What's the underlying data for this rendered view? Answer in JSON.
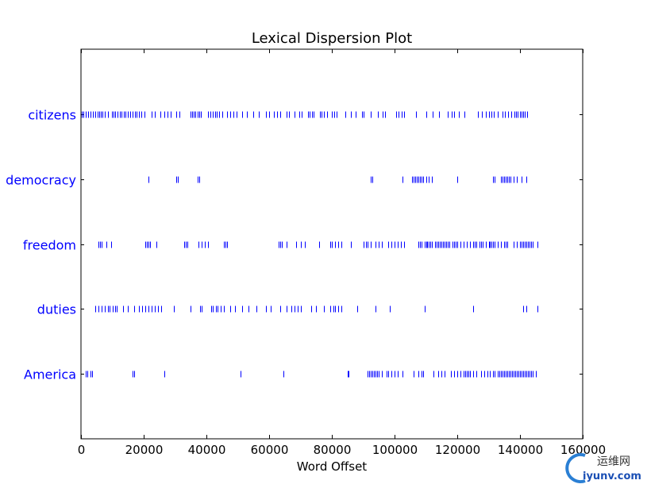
{
  "chart_data": {
    "type": "scatter",
    "title": "Lexical Dispersion Plot",
    "xlabel": "Word Offset",
    "ylabel": "",
    "xlim": [
      0,
      160000
    ],
    "x_ticks": [
      "0",
      "20000",
      "40000",
      "60000",
      "80000",
      "100000",
      "120000",
      "140000",
      "160000"
    ],
    "marker": "|",
    "color": "#0000ff",
    "grid": false,
    "series": [
      {
        "name": "citizens",
        "x": [
          300,
          700,
          1500,
          2300,
          3000,
          3800,
          4500,
          5200,
          5800,
          6300,
          6900,
          7600,
          8500,
          9800,
          10400,
          11000,
          11700,
          12300,
          13000,
          13600,
          14300,
          15000,
          15700,
          16400,
          17100,
          17800,
          18500,
          19300,
          20200,
          22500,
          23500,
          25200,
          26500,
          27500,
          28500,
          30300,
          31500,
          35000,
          35500,
          36000,
          36500,
          37100,
          37700,
          38300,
          40500,
          41200,
          42000,
          42700,
          43300,
          44000,
          45000,
          46500,
          47500,
          48700,
          49500,
          51500,
          53000,
          55000,
          56800,
          59000,
          60000,
          61500,
          62500,
          63500,
          65500,
          66300,
          68000,
          69500,
          70300,
          72300,
          72900,
          73600,
          74300,
          76200,
          76800,
          77500,
          78500,
          80000,
          80700,
          81600,
          84300,
          86000,
          87500,
          89500,
          90200,
          92300,
          94800,
          96200,
          97000,
          100500,
          101300,
          102200,
          103100,
          106800,
          110000,
          112200,
          114300,
          117000,
          118200,
          119000,
          120500,
          122300,
          126500,
          127800,
          129200,
          130000,
          130800,
          131600,
          132800,
          134500,
          135300,
          136200,
          137100,
          138200,
          138700,
          139300,
          139900,
          140500,
          141000,
          141600,
          142200
        ]
      },
      {
        "name": "democracy",
        "x": [
          21500,
          30500,
          31000,
          37200,
          37700,
          92500,
          93000,
          102500,
          105500,
          106000,
          106500,
          107000,
          107500,
          108000,
          108500,
          109000,
          110000,
          111000,
          112000,
          120000,
          131500,
          132000,
          134000,
          134500,
          135000,
          135500,
          136000,
          136500,
          137000,
          138000,
          139000,
          140500,
          142000
        ]
      },
      {
        "name": "freedom",
        "x": [
          5500,
          6000,
          6500,
          8000,
          9500,
          20500,
          21000,
          21500,
          22000,
          24000,
          33000,
          33500,
          34000,
          37500,
          38500,
          39500,
          40500,
          45500,
          46000,
          46500,
          63000,
          63500,
          64000,
          65500,
          68500,
          70000,
          71500,
          76000,
          79500,
          80000,
          81000,
          82000,
          83000,
          86000,
          90000,
          91000,
          91500,
          92500,
          94000,
          95000,
          96000,
          98000,
          99000,
          100000,
          101000,
          102000,
          103000,
          107500,
          108000,
          108500,
          109500,
          110000,
          110500,
          111000,
          111500,
          112000,
          113000,
          113500,
          114000,
          114500,
          115000,
          115500,
          116000,
          116500,
          117000,
          117500,
          118500,
          119000,
          119500,
          120000,
          121000,
          122000,
          123000,
          124000,
          125000,
          125500,
          126000,
          127000,
          127500,
          128000,
          129000,
          130000,
          130500,
          131000,
          131500,
          132000,
          133000,
          134000,
          135000,
          135500,
          136000,
          138000,
          139000,
          140000,
          140500,
          141000,
          141500,
          142000,
          142500,
          143000,
          143500,
          144000,
          145500
        ]
      },
      {
        "name": "duties",
        "x": [
          4500,
          5500,
          6500,
          7500,
          8500,
          9000,
          10000,
          11000,
          11500,
          13500,
          15000,
          17000,
          18500,
          19500,
          20500,
          21500,
          22500,
          23500,
          24500,
          25500,
          29500,
          35000,
          38000,
          38500,
          41500,
          42000,
          43000,
          43500,
          44500,
          45500,
          47500,
          49000,
          51500,
          53500,
          56000,
          59000,
          60500,
          63500,
          65500,
          67000,
          68000,
          69000,
          70000,
          73500,
          75000,
          77500,
          79500,
          80500,
          81000,
          82000,
          83000,
          88000,
          94000,
          98500,
          109500,
          125000,
          141000,
          142000,
          145500
        ]
      },
      {
        "name": "America",
        "x": [
          1500,
          2000,
          3000,
          3500,
          16500,
          17000,
          26500,
          51000,
          64500,
          85000,
          85300,
          91500,
          92000,
          92500,
          93000,
          93500,
          94000,
          94500,
          95000,
          96000,
          97500,
          98000,
          99000,
          100000,
          101000,
          102500,
          106000,
          107500,
          108500,
          109000,
          112500,
          114000,
          115000,
          116000,
          118000,
          119000,
          120000,
          121000,
          122000,
          122500,
          123000,
          123500,
          124000,
          125000,
          126000,
          127500,
          128500,
          129500,
          130500,
          131500,
          132000,
          133000,
          133500,
          134000,
          134500,
          135000,
          135500,
          136000,
          136500,
          137000,
          137500,
          138000,
          138500,
          139000,
          139500,
          140000,
          140500,
          141000,
          141500,
          142000,
          142500,
          143000,
          143500,
          144000,
          145000
        ]
      }
    ]
  },
  "watermark": {
    "cn_text": "运维网",
    "en_text": "iyunv.com"
  }
}
